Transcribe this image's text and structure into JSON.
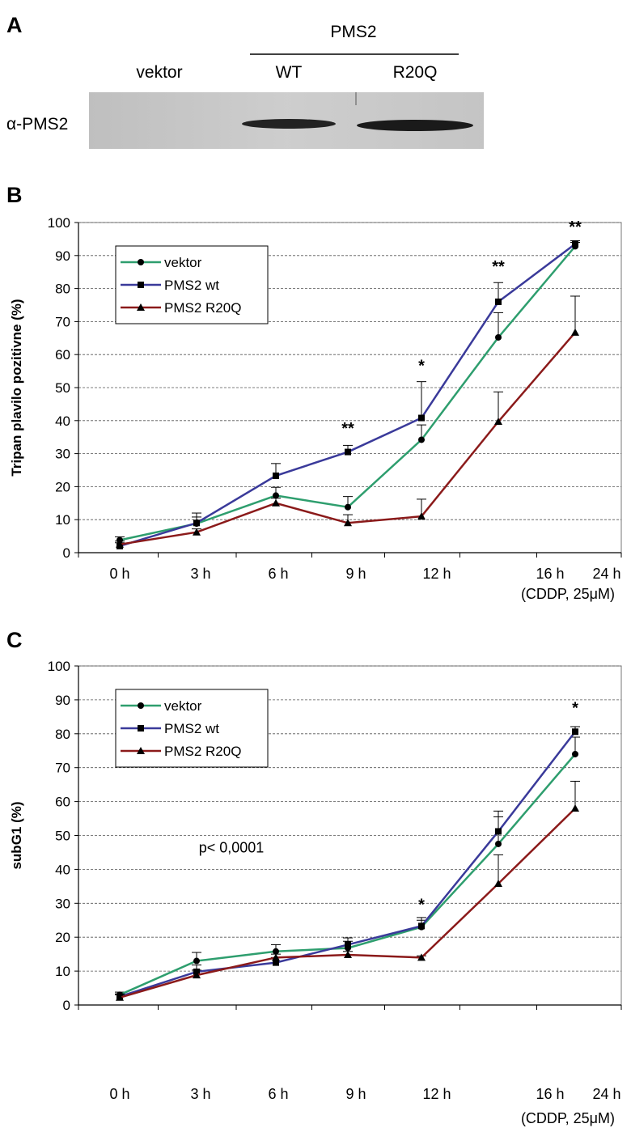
{
  "panel_a": {
    "letter": "A",
    "group_label": "PMS2",
    "lanes": [
      "vektor",
      "WT",
      "R20Q"
    ],
    "antibody_label": "α-PMS2",
    "band_present": [
      false,
      true,
      true
    ]
  },
  "chart_data": [
    {
      "panel": "B",
      "type": "line",
      "ylabel": "Tripan plavilo pozitivne (%)",
      "categories": [
        "0 h",
        "3 h",
        "6 h",
        "9 h",
        "12 h",
        "16 h",
        "24 h"
      ],
      "x_note": "(CDDP, 25μM)",
      "ylim": [
        0,
        100
      ],
      "yticks": [
        0,
        10,
        20,
        30,
        40,
        50,
        60,
        70,
        80,
        90,
        100
      ],
      "grid": true,
      "legend_position": "top-left",
      "series": [
        {
          "name": "vektor",
          "color": "#2e9e6e",
          "marker": "circle",
          "values": [
            3.8,
            8.8,
            17.3,
            13.8,
            34.2,
            65.2,
            92.8
          ],
          "errors": [
            1.0,
            2.0,
            2.5,
            3.2,
            4.5,
            7.5,
            1.2
          ]
        },
        {
          "name": "PMS2 wt",
          "color": "#3a3a9a",
          "marker": "square",
          "values": [
            2.0,
            9.0,
            23.3,
            30.5,
            40.8,
            76.0,
            93.5
          ],
          "errors": [
            1.0,
            3.0,
            3.7,
            2.0,
            11.0,
            5.8,
            1.0
          ]
        },
        {
          "name": "PMS2 R20Q",
          "color": "#8b1a1a",
          "marker": "triangle",
          "values": [
            2.5,
            6.2,
            15.0,
            9.0,
            11.0,
            39.7,
            66.7
          ],
          "errors": [
            1.0,
            1.0,
            1.5,
            2.5,
            5.2,
            9.0,
            11.0
          ]
        }
      ],
      "annotations": [
        {
          "category": "9 h",
          "y": 36,
          "text": "**"
        },
        {
          "category": "12 h",
          "y": 55,
          "text": "*"
        },
        {
          "category": "16 h",
          "y": 85,
          "text": "**"
        },
        {
          "category": "24 h",
          "y": 97,
          "text": "**"
        }
      ]
    },
    {
      "panel": "C",
      "type": "line",
      "ylabel": "subG1 (%)",
      "categories": [
        "0 h",
        "3 h",
        "6 h",
        "9 h",
        "12 h",
        "16 h",
        "24 h"
      ],
      "x_note": "(CDDP, 25μM)",
      "ylim": [
        0,
        100
      ],
      "yticks": [
        0,
        10,
        20,
        30,
        40,
        50,
        60,
        70,
        80,
        90,
        100
      ],
      "grid": true,
      "legend_position": "top-left",
      "text_note": "p< 0,0001",
      "series": [
        {
          "name": "vektor",
          "color": "#2e9e6e",
          "marker": "circle",
          "values": [
            3.0,
            13.0,
            15.8,
            16.8,
            23.0,
            47.5,
            74.0
          ],
          "errors": [
            0.8,
            2.5,
            2.0,
            2.0,
            2.0,
            8.0,
            5.0
          ]
        },
        {
          "name": "PMS2 wt",
          "color": "#3a3a9a",
          "marker": "square",
          "values": [
            2.5,
            9.8,
            12.5,
            17.8,
            23.3,
            51.2,
            80.6
          ],
          "errors": [
            0.8,
            2.0,
            1.5,
            2.0,
            2.5,
            6.0,
            1.5
          ]
        },
        {
          "name": "PMS2 R20Q",
          "color": "#8b1a1a",
          "marker": "triangle",
          "values": [
            2.2,
            8.8,
            14.0,
            14.8,
            14.0,
            35.8,
            58.0
          ],
          "errors": [
            0.8,
            1.5,
            1.0,
            1.0,
            0.5,
            8.5,
            8.0
          ]
        }
      ],
      "annotations": [
        {
          "category": "12 h",
          "y": 28,
          "text": "*"
        },
        {
          "category": "24 h",
          "y": 86,
          "text": "*"
        }
      ]
    }
  ]
}
